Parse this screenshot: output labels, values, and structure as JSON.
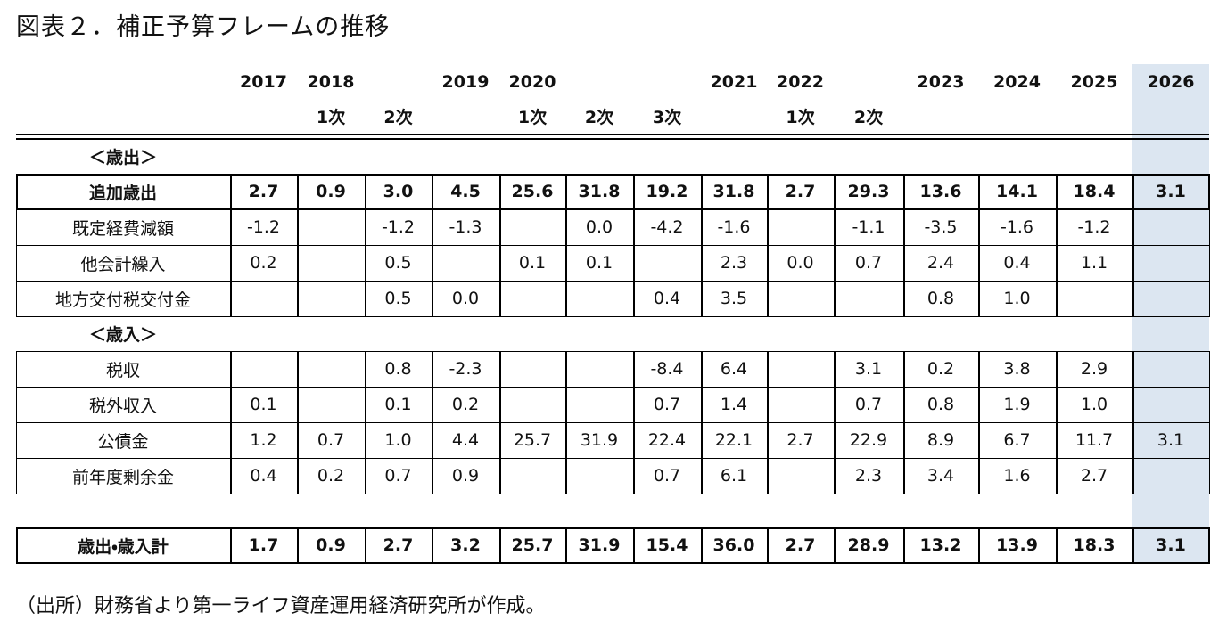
{
  "title": "図表２．補正予算フレームの推移",
  "table": {
    "columns": [
      "2017",
      "2018",
      null,
      "2019",
      "2020",
      null,
      null,
      "2021",
      "2022",
      null,
      "2023",
      "2024",
      "2025",
      "2026"
    ],
    "subcolumns": [
      null,
      "1次",
      "2次",
      null,
      "1次",
      "2次",
      "3次",
      null,
      "1次",
      "2次",
      null,
      null,
      null,
      null
    ],
    "sections": [
      {
        "label": "＜歳出＞",
        "rows": [
          {
            "label": "追加歳出",
            "values": [
              "2.7",
              "0.9",
              "3.0",
              "4.5",
              "25.6",
              "31.8",
              "19.2",
              "31.8",
              "2.7",
              "29.3",
              "13.6",
              "14.1",
              "18.4",
              "3.1"
            ]
          },
          {
            "label": "既定経費減額",
            "values": [
              "-1.2",
              null,
              "-1.2",
              "-1.3",
              null,
              "0.0",
              "-4.2",
              "-1.6",
              null,
              "-1.1",
              "-3.5",
              "-1.6",
              "-1.2",
              null
            ]
          },
          {
            "label": "他会計繰入",
            "values": [
              "0.2",
              null,
              "0.5",
              null,
              "0.1",
              "0.1",
              null,
              "2.3",
              "0.0",
              "0.7",
              "2.4",
              "0.4",
              "1.1",
              null
            ]
          },
          {
            "label": "地方交付税交付金",
            "values": [
              null,
              null,
              "0.5",
              "0.0",
              null,
              null,
              "0.4",
              "3.5",
              null,
              null,
              "0.8",
              "1.0",
              null,
              null
            ]
          }
        ]
      },
      {
        "label": "＜歳入＞",
        "rows": [
          {
            "label": "税収",
            "values": [
              null,
              null,
              "0.8",
              "-2.3",
              null,
              null,
              "-8.4",
              "6.4",
              null,
              "3.1",
              "0.2",
              "3.8",
              "2.9",
              null
            ]
          },
          {
            "label": "税外収入",
            "values": [
              "0.1",
              null,
              "0.1",
              "0.2",
              null,
              null,
              "0.7",
              "1.4",
              null,
              "0.7",
              "0.8",
              "1.9",
              "1.0",
              null
            ]
          },
          {
            "label": "公債金",
            "values": [
              "1.2",
              "0.7",
              "1.0",
              "4.4",
              "25.7",
              "31.9",
              "22.4",
              "22.1",
              "2.7",
              "22.9",
              "8.9",
              "6.7",
              "11.7",
              "3.1"
            ]
          },
          {
            "label": "前年度剰余金",
            "values": [
              "0.4",
              "0.2",
              "0.7",
              "0.9",
              null,
              null,
              "0.7",
              "6.1",
              null,
              "2.3",
              "3.4",
              "1.6",
              "2.7",
              null
            ]
          }
        ]
      }
    ],
    "total": {
      "label": "歳出・歳入計",
      "values": [
        "1.7",
        "0.9",
        "2.7",
        "3.2",
        "25.7",
        "31.9",
        "15.4",
        "36.0",
        "2.7",
        "28.9",
        "13.2",
        "13.9",
        "18.3",
        "3.1"
      ]
    }
  },
  "source": "（出所）財務省より第一ライフ資産運用経済研究所が作成。"
}
